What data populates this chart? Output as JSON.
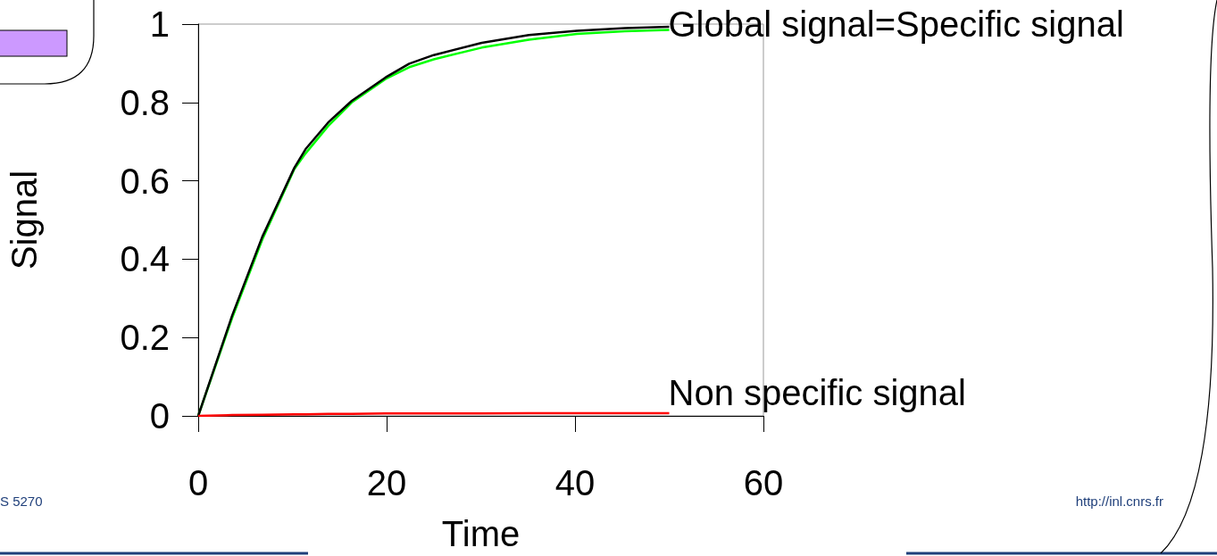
{
  "chart_data": {
    "type": "line",
    "xlabel": "Time",
    "ylabel": "Signal",
    "x": [
      0,
      3.6,
      6.8,
      10.2,
      11.4,
      13.8,
      16.3,
      19.9,
      22.4,
      25,
      30.1,
      35.1,
      40.2,
      45.3,
      50
    ],
    "series": [
      {
        "color": "#00ff00",
        "values": [
          0,
          0.25,
          0.45,
          0.63,
          0.67,
          0.74,
          0.8,
          0.86,
          0.89,
          0.91,
          0.94,
          0.96,
          0.975,
          0.982,
          0.985
        ]
      },
      {
        "color": "#000000",
        "values": [
          0,
          0.256,
          0.457,
          0.633,
          0.681,
          0.749,
          0.804,
          0.864,
          0.899,
          0.921,
          0.952,
          0.972,
          0.983,
          0.99,
          0.993
        ]
      },
      {
        "color": "#ff0000",
        "values": [
          0,
          0.002,
          0.003,
          0.004,
          0.004,
          0.005,
          0.005,
          0.006,
          0.006,
          0.006,
          0.006,
          0.007,
          0.007,
          0.007,
          0.007
        ]
      }
    ],
    "xlim": [
      0,
      60
    ],
    "xticks": [
      0,
      20,
      40,
      60
    ],
    "ylim": [
      0,
      1
    ],
    "yticks": [
      0,
      0.2,
      0.4,
      0.6,
      0.8,
      1
    ],
    "grid": false,
    "marker": "none",
    "line_style": "solid",
    "annotations": [
      {
        "text": "Global signal=Specific signal",
        "x": 50,
        "y": 1
      },
      {
        "text": "Non specific signal",
        "x": 50,
        "y": 0.01
      },
      "S 5270",
      "http://inl.cnrs.fr"
    ]
  }
}
